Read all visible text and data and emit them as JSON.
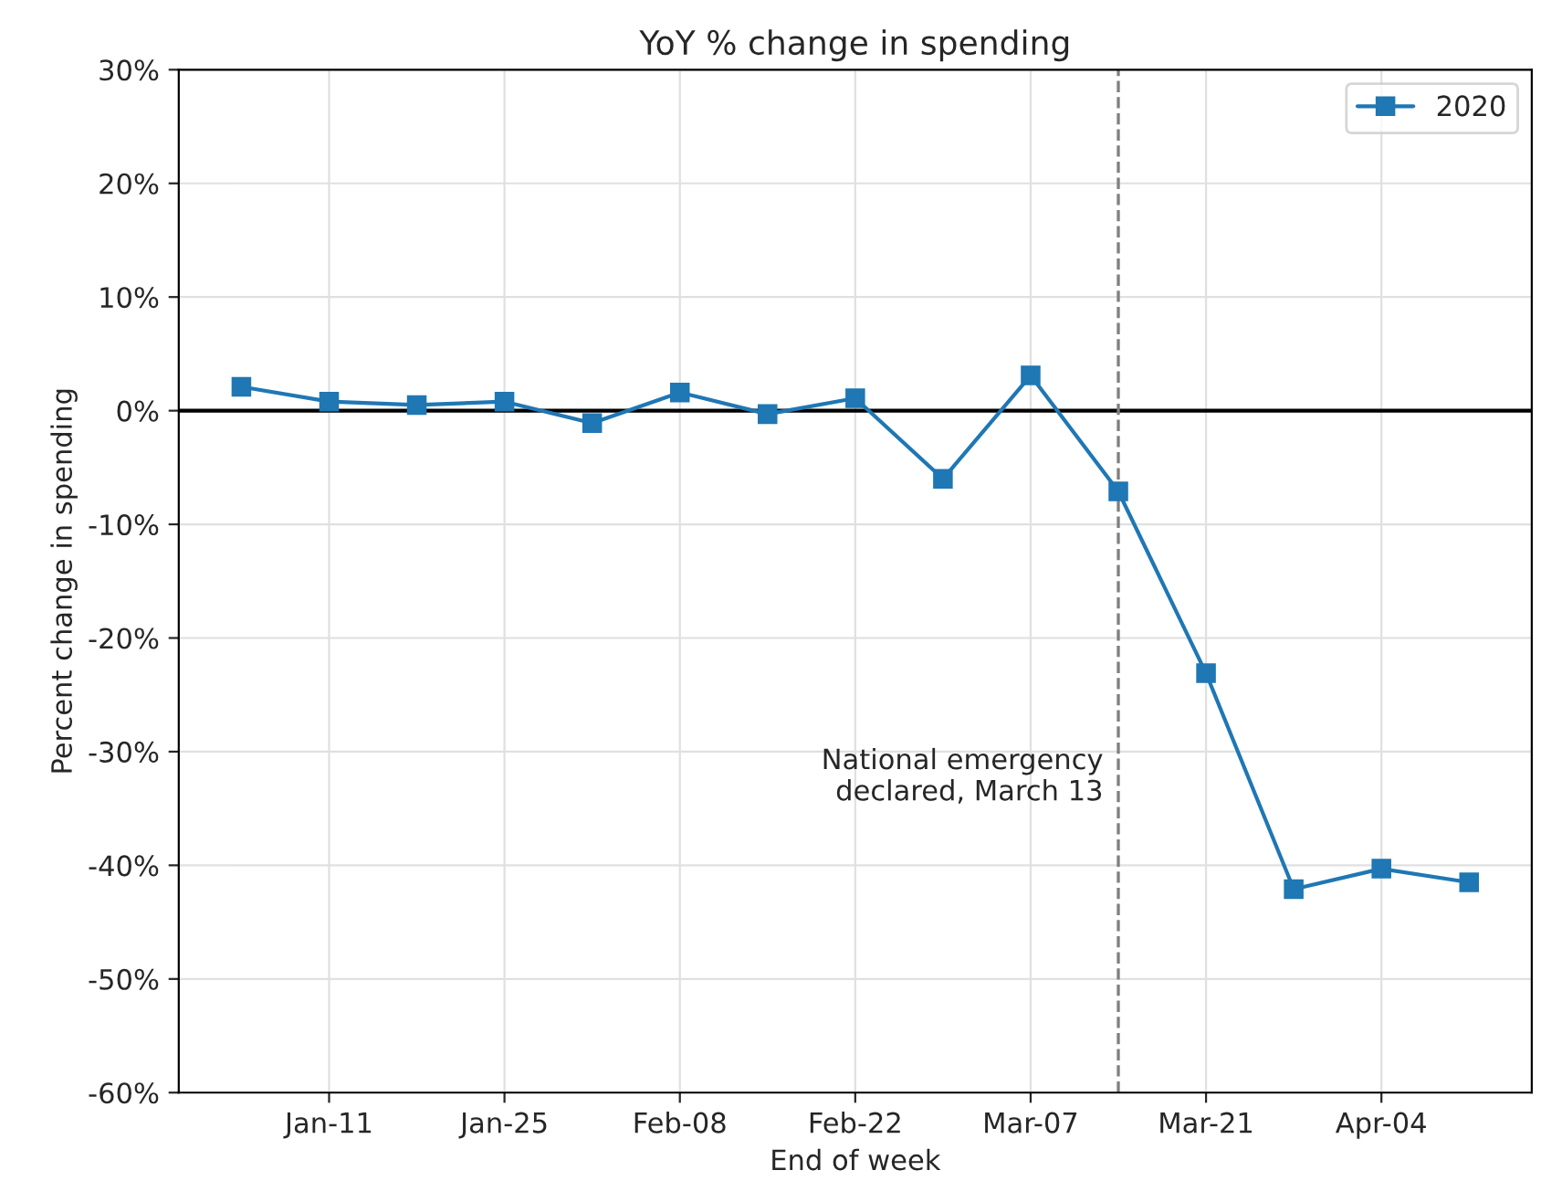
{
  "chart_data": {
    "type": "line",
    "title": "YoY % change in spending",
    "xlabel": "End of week",
    "ylabel": "Percent change in spending",
    "x": [
      "2020-01-04",
      "2020-01-11",
      "2020-01-18",
      "2020-01-25",
      "2020-02-01",
      "2020-02-08",
      "2020-02-15",
      "2020-02-22",
      "2020-02-29",
      "2020-03-07",
      "2020-03-14",
      "2020-03-21",
      "2020-03-28",
      "2020-04-04",
      "2020-04-11"
    ],
    "series": [
      {
        "name": "2020",
        "color": "#1f77b4",
        "values": [
          2.1,
          0.8,
          0.5,
          0.8,
          -1.1,
          1.6,
          -0.3,
          1.1,
          -6,
          3.1,
          -7.1,
          -23.1,
          -42.1,
          -40.3,
          -41.5
        ]
      }
    ],
    "xlim": [
      "2019-12-30",
      "2020-04-16"
    ],
    "xticks": [
      {
        "value": "2020-01-11",
        "label": "Jan-11"
      },
      {
        "value": "2020-01-25",
        "label": "Jan-25"
      },
      {
        "value": "2020-02-08",
        "label": "Feb-08"
      },
      {
        "value": "2020-02-22",
        "label": "Feb-22"
      },
      {
        "value": "2020-03-07",
        "label": "Mar-07"
      },
      {
        "value": "2020-03-21",
        "label": "Mar-21"
      },
      {
        "value": "2020-04-04",
        "label": "Apr-04"
      }
    ],
    "ylim": [
      -60,
      30
    ],
    "yticks": [
      {
        "value": -60,
        "label": "-60%"
      },
      {
        "value": -50,
        "label": "-50%"
      },
      {
        "value": -40,
        "label": "-40%"
      },
      {
        "value": -30,
        "label": "-30%"
      },
      {
        "value": -20,
        "label": "-20%"
      },
      {
        "value": -10,
        "label": "-10%"
      },
      {
        "value": 0,
        "label": "0%"
      },
      {
        "value": 10,
        "label": "10%"
      },
      {
        "value": 20,
        "label": "20%"
      },
      {
        "value": 30,
        "label": "30%"
      }
    ],
    "ref_lines": [
      {
        "axis": "y",
        "value": 0,
        "color": "#000000",
        "line_style": "solid"
      },
      {
        "axis": "x",
        "value": "2020-03-14",
        "label": "National emergency\ndeclared, March 13",
        "color": "#808080",
        "line_style": "dashed"
      }
    ],
    "grid": true,
    "legend": "top right",
    "marker": "square",
    "line_style": "solid"
  }
}
